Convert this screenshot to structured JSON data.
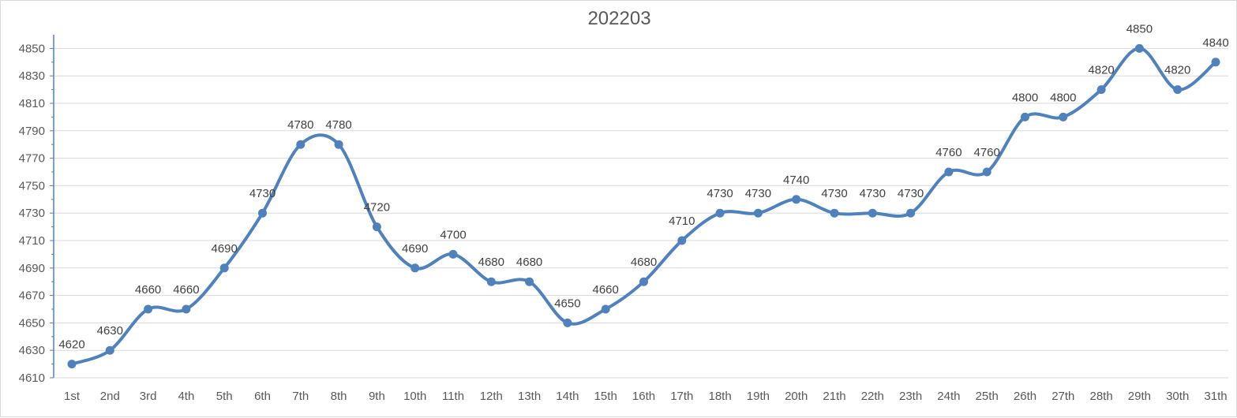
{
  "chart_data": {
    "type": "line",
    "title": "202203",
    "xlabel": "",
    "ylabel": "",
    "categories": [
      "1st",
      "2nd",
      "3rd",
      "4th",
      "5th",
      "6th",
      "7th",
      "8th",
      "9th",
      "10th",
      "11th",
      "12th",
      "13th",
      "14th",
      "15th",
      "16th",
      "17th",
      "18th",
      "19th",
      "20th",
      "21th",
      "22th",
      "23th",
      "24th",
      "25th",
      "26th",
      "27th",
      "28th",
      "29th",
      "30th",
      "31th"
    ],
    "series": [
      {
        "values": [
          4620,
          4630,
          4660,
          4660,
          4690,
          4730,
          4780,
          4780,
          4720,
          4690,
          4700,
          4680,
          4680,
          4650,
          4660,
          4680,
          4710,
          4730,
          4730,
          4740,
          4730,
          4730,
          4730,
          4760,
          4760,
          4800,
          4800,
          4820,
          4850,
          4820,
          4840
        ],
        "color": "#4f81bd",
        "smooth": true,
        "markers": true,
        "data_labels": true
      }
    ],
    "ylim": [
      4610,
      4860
    ],
    "yticks": [
      4610,
      4630,
      4650,
      4670,
      4690,
      4710,
      4730,
      4750,
      4770,
      4790,
      4810,
      4830,
      4850
    ],
    "grid": true,
    "legend": "none"
  }
}
